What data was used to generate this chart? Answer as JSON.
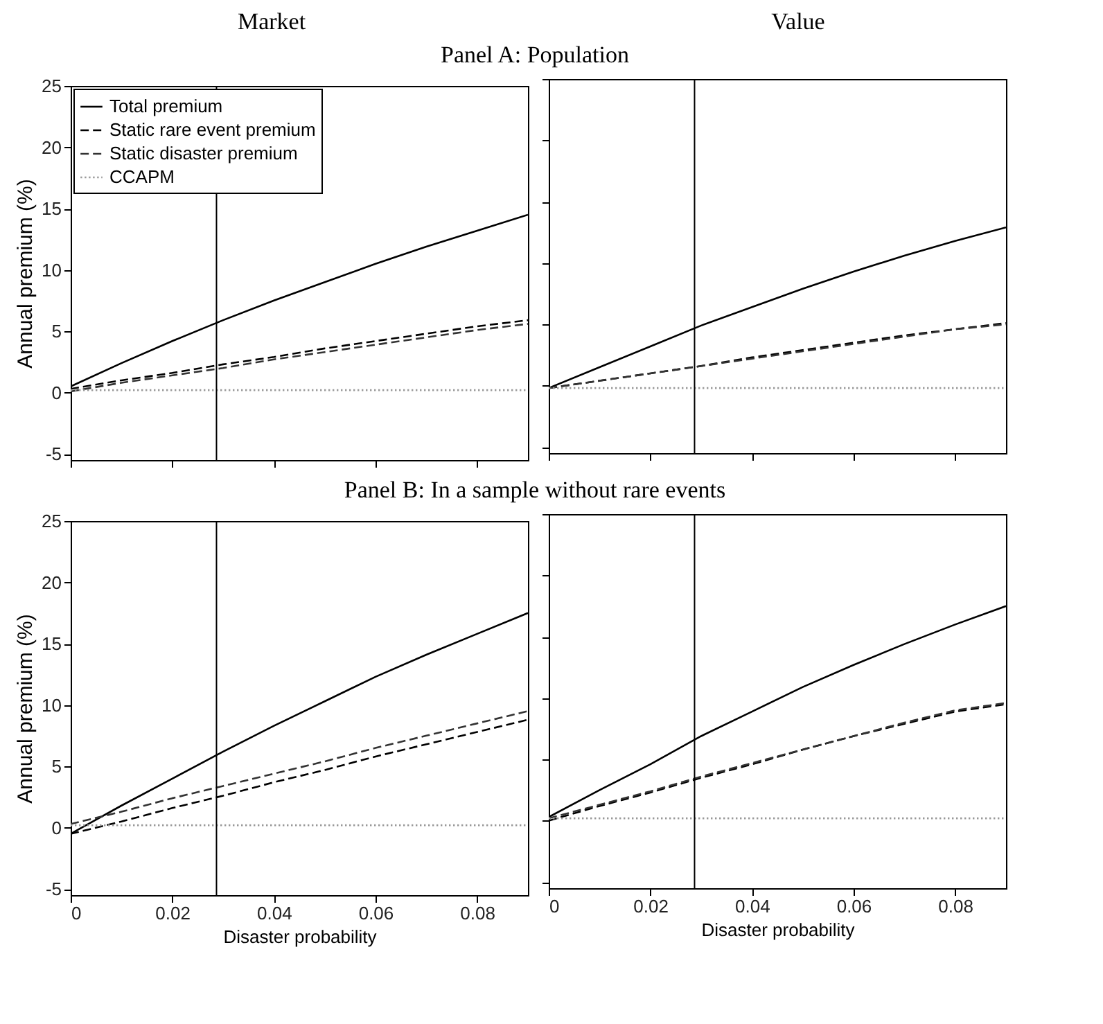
{
  "chart_data": [
    {
      "type": "line",
      "title": "Market",
      "subtitle": "Panel A: Population",
      "ylabel": "Annual premium (%)",
      "x": [
        0,
        0.01,
        0.02,
        0.03,
        0.04,
        0.05,
        0.06,
        0.07,
        0.08,
        0.09
      ],
      "xlim": [
        0,
        0.09
      ],
      "ylim": [
        -5.5,
        25
      ],
      "xticks": [
        0,
        0.02,
        0.04,
        0.06,
        0.08
      ],
      "yticks": [
        -5,
        0,
        5,
        10,
        15,
        20,
        25
      ],
      "tick_labels": "y",
      "legend": "top left",
      "ref_lines": [
        {
          "axis": "x",
          "value": 0.0287
        }
      ],
      "series": [
        {
          "name": "Total premium",
          "color": "#000000",
          "line_style": "solid",
          "values": [
            0.5,
            2.4,
            4.2,
            5.9,
            7.5,
            9.0,
            10.5,
            11.9,
            13.2,
            14.5
          ]
        },
        {
          "name": "Static rare event premium",
          "color": "#000000",
          "line_style": "dashed",
          "values": [
            0.3,
            1.0,
            1.6,
            2.3,
            2.9,
            3.6,
            4.2,
            4.8,
            5.4,
            5.9
          ]
        },
        {
          "name": "Static disaster premium",
          "color": "#333333",
          "line_style": "dashed",
          "values": [
            0.1,
            0.8,
            1.4,
            2.0,
            2.7,
            3.3,
            3.9,
            4.5,
            5.1,
            5.6
          ]
        },
        {
          "name": "CCAPM",
          "color": "#999999",
          "line_style": "dotted",
          "values": [
            0.2,
            0.2,
            0.2,
            0.2,
            0.2,
            0.2,
            0.2,
            0.2,
            0.2,
            0.2
          ]
        }
      ]
    },
    {
      "type": "line",
      "title": "Value",
      "x": [
        0,
        0.01,
        0.02,
        0.03,
        0.04,
        0.05,
        0.06,
        0.07,
        0.08,
        0.09
      ],
      "xlim": [
        0,
        0.09
      ],
      "ylim": [
        -5.5,
        25
      ],
      "xticks": [
        0,
        0.02,
        0.04,
        0.06,
        0.08
      ],
      "yticks": [
        -5,
        0,
        5,
        10,
        15,
        20,
        25
      ],
      "tick_labels": false,
      "ref_lines": [
        {
          "axis": "x",
          "value": 0.0287
        }
      ],
      "series": [
        {
          "color": "#000000",
          "line_style": "solid",
          "values": [
            -0.2,
            1.5,
            3.2,
            4.9,
            6.4,
            7.9,
            9.3,
            10.6,
            11.8,
            12.9
          ]
        },
        {
          "color": "#000000",
          "line_style": "dashed",
          "values": [
            -0.2,
            0.4,
            1.0,
            1.6,
            2.3,
            2.9,
            3.5,
            4.1,
            4.6,
            5.1
          ]
        },
        {
          "color": "#333333",
          "line_style": "dashed",
          "values": [
            -0.2,
            0.4,
            1.0,
            1.6,
            2.2,
            2.8,
            3.4,
            4.0,
            4.6,
            5.0
          ]
        },
        {
          "color": "#999999",
          "line_style": "dotted",
          "values": [
            -0.2,
            -0.2,
            -0.2,
            -0.2,
            -0.2,
            -0.2,
            -0.2,
            -0.2,
            -0.2,
            -0.2
          ]
        }
      ]
    },
    {
      "type": "line",
      "title": "Panel B: In a sample without rare events",
      "xlabel": "Disaster probability",
      "ylabel": "Annual premium (%)",
      "x": [
        0,
        0.01,
        0.02,
        0.03,
        0.04,
        0.05,
        0.06,
        0.07,
        0.08,
        0.09
      ],
      "xlim": [
        0,
        0.09
      ],
      "ylim": [
        -5.5,
        25
      ],
      "xticks": [
        0,
        0.02,
        0.04,
        0.06,
        0.08
      ],
      "yticks": [
        -5,
        0,
        5,
        10,
        15,
        20,
        25
      ],
      "ref_lines": [
        {
          "axis": "x",
          "value": 0.0287
        }
      ],
      "series": [
        {
          "color": "#000000",
          "line_style": "solid",
          "values": [
            -0.5,
            1.8,
            4.0,
            6.2,
            8.3,
            10.3,
            12.3,
            14.1,
            15.8,
            17.5
          ]
        },
        {
          "color": "#000000",
          "line_style": "dashed",
          "values": [
            -0.5,
            0.5,
            1.6,
            2.6,
            3.7,
            4.7,
            5.8,
            6.8,
            7.8,
            8.8
          ]
        },
        {
          "color": "#333333",
          "line_style": "dashed",
          "values": [
            0.3,
            1.3,
            2.4,
            3.4,
            4.4,
            5.4,
            6.5,
            7.5,
            8.5,
            9.5
          ]
        },
        {
          "color": "#999999",
          "line_style": "dotted",
          "values": [
            0.2,
            0.2,
            0.2,
            0.2,
            0.2,
            0.2,
            0.2,
            0.2,
            0.2,
            0.2
          ]
        }
      ]
    },
    {
      "type": "line",
      "xlabel": "Disaster probability",
      "x": [
        0,
        0.01,
        0.02,
        0.03,
        0.04,
        0.05,
        0.06,
        0.07,
        0.08,
        0.09
      ],
      "xlim": [
        0,
        0.09
      ],
      "ylim": [
        -5.5,
        25
      ],
      "xticks": [
        0,
        0.02,
        0.04,
        0.06,
        0.08
      ],
      "yticks": [
        -5,
        0,
        5,
        10,
        15,
        20,
        25
      ],
      "tick_labels": "x",
      "ref_lines": [
        {
          "axis": "x",
          "value": 0.0287
        }
      ],
      "series": [
        {
          "color": "#000000",
          "line_style": "solid",
          "values": [
            0.3,
            2.5,
            4.6,
            6.9,
            8.9,
            10.9,
            12.7,
            14.4,
            16.0,
            17.5
          ]
        },
        {
          "color": "#000000",
          "line_style": "dashed",
          "values": [
            0.0,
            1.2,
            2.3,
            3.5,
            4.6,
            5.8,
            6.9,
            7.9,
            8.9,
            9.5
          ]
        },
        {
          "color": "#333333",
          "line_style": "dashed",
          "values": [
            0.2,
            1.3,
            2.4,
            3.6,
            4.7,
            5.8,
            6.9,
            8.0,
            9.0,
            9.6
          ]
        },
        {
          "color": "#999999",
          "line_style": "dotted",
          "values": [
            0.2,
            0.2,
            0.2,
            0.2,
            0.2,
            0.2,
            0.2,
            0.2,
            0.2,
            0.2
          ]
        }
      ]
    }
  ]
}
